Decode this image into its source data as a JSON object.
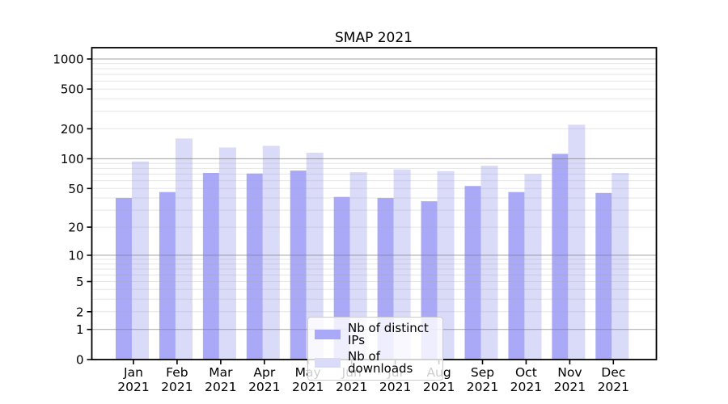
{
  "chart_data": {
    "type": "bar",
    "title": "SMAP 2021",
    "categories": [
      "Jan",
      "Feb",
      "Mar",
      "Apr",
      "May",
      "Jun",
      "Jul",
      "Aug",
      "Sep",
      "Oct",
      "Nov",
      "Dec"
    ],
    "year_label": "2021",
    "series": [
      {
        "name": "Nb of distinct IPs",
        "color": "#a9a9f7",
        "values": [
          40,
          46,
          72,
          71,
          76,
          41,
          40,
          37,
          53,
          46,
          112,
          45
        ]
      },
      {
        "name": "Nb of downloads",
        "color": "#dadaf9",
        "values": [
          94,
          160,
          130,
          135,
          115,
          73,
          78,
          75,
          85,
          70,
          220,
          72
        ]
      }
    ],
    "yticks": [
      0,
      1,
      2,
      5,
      10,
      20,
      50,
      100,
      200,
      500,
      1000
    ],
    "ylabel": "",
    "xlabel": "",
    "yscale": "symlog (position = ln(1+v))",
    "ylim": [
      0,
      1300
    ],
    "grid": "on",
    "grid_major_color": "#b3b3b3",
    "grid_minor_color": "#ececec",
    "legend_position": "lower center"
  }
}
